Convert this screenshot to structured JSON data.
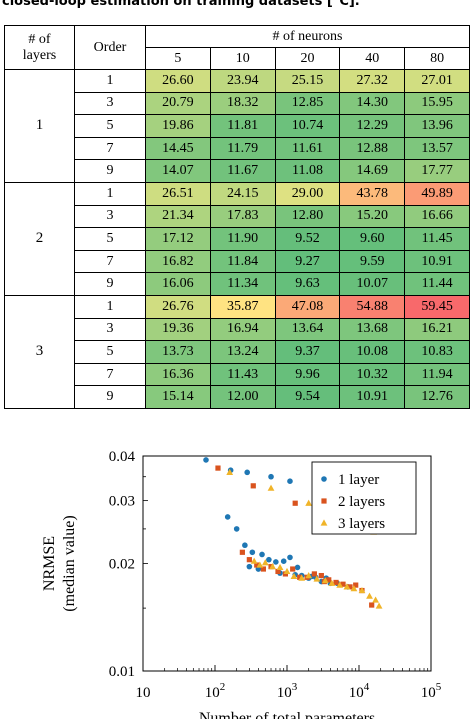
{
  "caption": "closed-loop estimation on training datasets [°C].",
  "table": {
    "header_layers": "# of\nlayers",
    "header_order": "Order",
    "header_neurons": "# of neurons",
    "neurons": [
      "5",
      "10",
      "20",
      "40",
      "80"
    ],
    "groups": [
      {
        "layers": "1",
        "rows": [
          {
            "order": "1",
            "values": [
              "26.60",
              "23.94",
              "25.15",
              "27.32",
              "27.01"
            ]
          },
          {
            "order": "3",
            "values": [
              "20.79",
              "18.32",
              "12.85",
              "14.30",
              "15.95"
            ]
          },
          {
            "order": "5",
            "values": [
              "19.86",
              "11.81",
              "10.74",
              "12.29",
              "13.96"
            ]
          },
          {
            "order": "7",
            "values": [
              "14.45",
              "11.79",
              "11.61",
              "12.88",
              "13.57"
            ]
          },
          {
            "order": "9",
            "values": [
              "14.07",
              "11.67",
              "11.08",
              "14.69",
              "17.77"
            ]
          }
        ]
      },
      {
        "layers": "2",
        "rows": [
          {
            "order": "1",
            "values": [
              "26.51",
              "24.15",
              "29.00",
              "43.78",
              "49.89"
            ]
          },
          {
            "order": "3",
            "values": [
              "21.34",
              "17.83",
              "12.80",
              "15.20",
              "16.66"
            ]
          },
          {
            "order": "5",
            "values": [
              "17.12",
              "11.90",
              "9.52",
              "9.60",
              "11.45"
            ]
          },
          {
            "order": "7",
            "values": [
              "16.82",
              "11.84",
              "9.27",
              "9.59",
              "10.91"
            ]
          },
          {
            "order": "9",
            "values": [
              "16.06",
              "11.34",
              "9.63",
              "10.07",
              "11.44"
            ]
          }
        ]
      },
      {
        "layers": "3",
        "rows": [
          {
            "order": "1",
            "values": [
              "26.76",
              "35.87",
              "47.08",
              "54.88",
              "59.45"
            ]
          },
          {
            "order": "3",
            "values": [
              "19.36",
              "16.94",
              "13.64",
              "13.68",
              "16.21"
            ]
          },
          {
            "order": "5",
            "values": [
              "13.73",
              "13.24",
              "9.37",
              "10.08",
              "10.83"
            ]
          },
          {
            "order": "7",
            "values": [
              "16.36",
              "11.43",
              "9.96",
              "10.32",
              "11.94"
            ]
          },
          {
            "order": "9",
            "values": [
              "15.14",
              "12.00",
              "9.54",
              "10.91",
              "12.76"
            ]
          }
        ]
      }
    ]
  },
  "chart_data": {
    "type": "scatter",
    "xscale": "log",
    "yscale": "log",
    "xlim": [
      10,
      100000
    ],
    "ylim": [
      0.01,
      0.04
    ],
    "xticks": [
      10,
      100,
      1000,
      10000,
      100000
    ],
    "xtick_labels": [
      {
        "base": "10",
        "exp": ""
      },
      {
        "base": "10",
        "exp": "2"
      },
      {
        "base": "10",
        "exp": "3"
      },
      {
        "base": "10",
        "exp": "4"
      },
      {
        "base": "10",
        "exp": "5"
      }
    ],
    "yticks": [
      0.01,
      0.02,
      0.03,
      0.04
    ],
    "ytick_labels": [
      "0.01",
      "0.02",
      "0.03",
      "0.04"
    ],
    "xlabel": "Number of total parameters",
    "ylabel": "NRMSE",
    "ylabel2": "(median value)",
    "legend_position": "top-right",
    "series": [
      {
        "name": "1 layer",
        "marker": "circle",
        "color": "#1f77b4",
        "points": [
          [
            75,
            0.039
          ],
          [
            165,
            0.0365
          ],
          [
            280,
            0.036
          ],
          [
            600,
            0.035
          ],
          [
            1100,
            0.034
          ],
          [
            150,
            0.027
          ],
          [
            200,
            0.025
          ],
          [
            260,
            0.0225
          ],
          [
            330,
            0.0215
          ],
          [
            450,
            0.0212
          ],
          [
            560,
            0.0205
          ],
          [
            700,
            0.0202
          ],
          [
            900,
            0.0203
          ],
          [
            1100,
            0.0208
          ],
          [
            1400,
            0.0195
          ],
          [
            1600,
            0.0185
          ],
          [
            2000,
            0.0182
          ],
          [
            2500,
            0.0183
          ],
          [
            3000,
            0.0178
          ],
          [
            4000,
            0.0176
          ],
          [
            5000,
            0.0176
          ],
          [
            7000,
            0.0172
          ],
          [
            300,
            0.0196
          ],
          [
            400,
            0.0193
          ],
          [
            800,
            0.0188
          ],
          [
            1300,
            0.0186
          ],
          [
            2200,
            0.0184
          ],
          [
            3500,
            0.0182
          ]
        ]
      },
      {
        "name": "2 layers",
        "marker": "square",
        "color": "#d9531e",
        "points": [
          [
            110,
            0.037
          ],
          [
            340,
            0.033
          ],
          [
            1300,
            0.0295
          ],
          [
            4000,
            0.0275
          ],
          [
            9500,
            0.0265
          ],
          [
            240,
            0.0215
          ],
          [
            300,
            0.0205
          ],
          [
            380,
            0.0198
          ],
          [
            470,
            0.0193
          ],
          [
            600,
            0.0196
          ],
          [
            750,
            0.019
          ],
          [
            950,
            0.0187
          ],
          [
            1200,
            0.0193
          ],
          [
            1500,
            0.0183
          ],
          [
            1900,
            0.0183
          ],
          [
            2400,
            0.0187
          ],
          [
            3000,
            0.0185
          ],
          [
            3800,
            0.018
          ],
          [
            4800,
            0.0177
          ],
          [
            6000,
            0.0175
          ],
          [
            7500,
            0.0172
          ],
          [
            11000,
            0.0168
          ],
          [
            15000,
            0.0153
          ],
          [
            3300,
            0.0178
          ],
          [
            9000,
            0.0174
          ]
        ]
      },
      {
        "name": "3 layers",
        "marker": "triangle",
        "color": "#f0b429",
        "points": [
          [
            160,
            0.036
          ],
          [
            600,
            0.0325
          ],
          [
            2000,
            0.0295
          ],
          [
            6000,
            0.027
          ],
          [
            16000,
            0.0245
          ],
          [
            350,
            0.0203
          ],
          [
            420,
            0.0198
          ],
          [
            500,
            0.0201
          ],
          [
            630,
            0.0196
          ],
          [
            800,
            0.0195
          ],
          [
            1000,
            0.019
          ],
          [
            1250,
            0.0184
          ],
          [
            1600,
            0.0182
          ],
          [
            2000,
            0.0185
          ],
          [
            2600,
            0.0181
          ],
          [
            3400,
            0.0179
          ],
          [
            4200,
            0.0176
          ],
          [
            5400,
            0.0174
          ],
          [
            6800,
            0.0172
          ],
          [
            8500,
            0.017
          ],
          [
            11000,
            0.0168
          ],
          [
            14000,
            0.0162
          ],
          [
            17000,
            0.0158
          ],
          [
            19000,
            0.0152
          ]
        ]
      }
    ]
  }
}
